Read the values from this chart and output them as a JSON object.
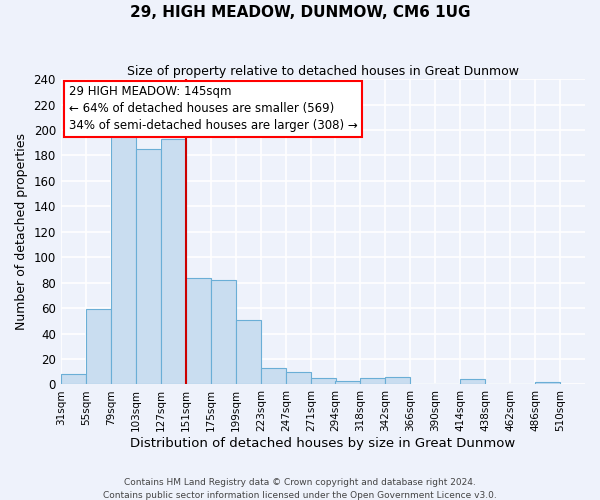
{
  "title": "29, HIGH MEADOW, DUNMOW, CM6 1UG",
  "subtitle": "Size of property relative to detached houses in Great Dunmow",
  "xlabel": "Distribution of detached houses by size in Great Dunmow",
  "ylabel": "Number of detached properties",
  "bar_left_edges": [
    31,
    55,
    79,
    103,
    127,
    151,
    175,
    199,
    223,
    247,
    271,
    294,
    318,
    342,
    366,
    390,
    414,
    438,
    462,
    486
  ],
  "bar_heights": [
    8,
    59,
    201,
    185,
    193,
    84,
    82,
    51,
    13,
    10,
    5,
    3,
    5,
    6,
    0,
    0,
    4,
    0,
    0,
    2
  ],
  "bin_width": 24,
  "bar_color": "#c9ddf0",
  "bar_edge_color": "#6aaed6",
  "vline_x": 151,
  "vline_color": "#cc0000",
  "annotation_title": "29 HIGH MEADOW: 145sqm",
  "annotation_line1": "← 64% of detached houses are smaller (569)",
  "annotation_line2": "34% of semi-detached houses are larger (308) →",
  "annotation_box_color": "white",
  "annotation_box_edge_color": "red",
  "ylim": [
    0,
    240
  ],
  "yticks": [
    0,
    20,
    40,
    60,
    80,
    100,
    120,
    140,
    160,
    180,
    200,
    220,
    240
  ],
  "xtick_labels": [
    "31sqm",
    "55sqm",
    "79sqm",
    "103sqm",
    "127sqm",
    "151sqm",
    "175sqm",
    "199sqm",
    "223sqm",
    "247sqm",
    "271sqm",
    "294sqm",
    "318sqm",
    "342sqm",
    "366sqm",
    "390sqm",
    "414sqm",
    "438sqm",
    "462sqm",
    "486sqm",
    "510sqm"
  ],
  "xtick_positions": [
    31,
    55,
    79,
    103,
    127,
    151,
    175,
    199,
    223,
    247,
    271,
    294,
    318,
    342,
    366,
    390,
    414,
    438,
    462,
    486,
    510
  ],
  "footer_line1": "Contains HM Land Registry data © Crown copyright and database right 2024.",
  "footer_line2": "Contains public sector information licensed under the Open Government Licence v3.0.",
  "bg_color": "#eef2fb",
  "grid_color": "white"
}
